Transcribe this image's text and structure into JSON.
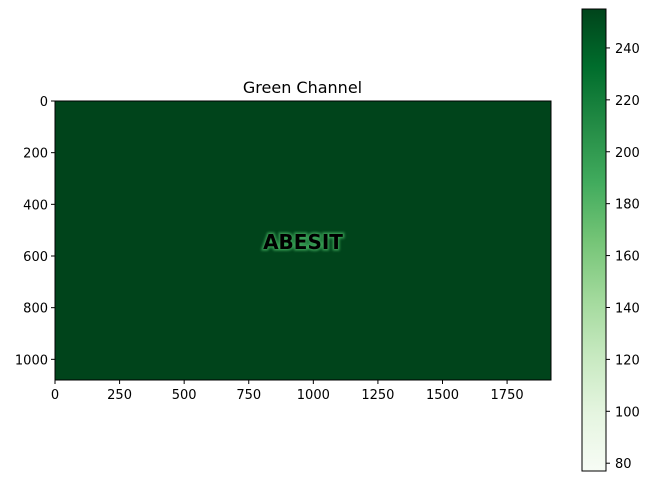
{
  "chart_data": {
    "type": "heatmap",
    "title": "Green Channel",
    "image": {
      "width": 1920,
      "height": 1080,
      "background_value": 255,
      "center_text": "ABESIT",
      "center_text_value": 77
    },
    "xlim": [
      0,
      1920
    ],
    "ylim": [
      1080,
      0
    ],
    "xticks": [
      0,
      250,
      500,
      750,
      1000,
      1250,
      1500,
      1750
    ],
    "yticks": [
      0,
      200,
      400,
      600,
      800,
      1000
    ],
    "colorbar": {
      "cmap": "Greens",
      "vmin": 77,
      "vmax": 255,
      "ticks": [
        80,
        100,
        120,
        140,
        160,
        180,
        200,
        220,
        240
      ]
    }
  }
}
